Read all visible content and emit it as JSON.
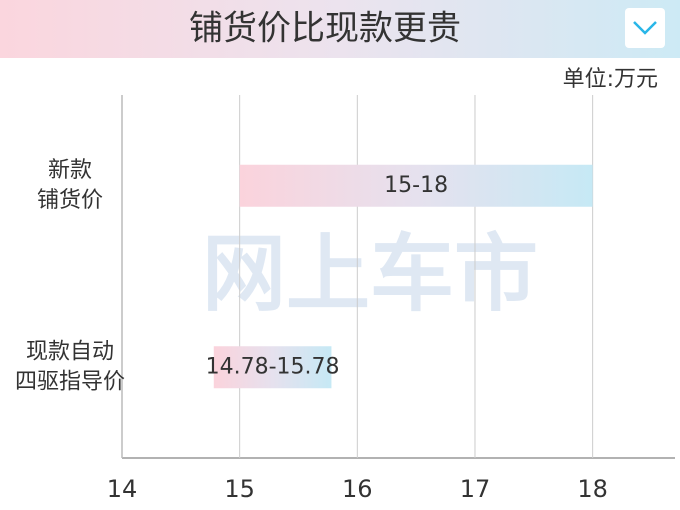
{
  "chart_data": {
    "type": "range-bar",
    "title": "铺货价比现款更贵",
    "unit_label": "单位:万元",
    "watermark": "网上车市",
    "categories": [
      [
        "新款",
        "铺货价"
      ],
      [
        "现款自动",
        "四驱指导价"
      ]
    ],
    "values": [
      [
        15,
        18
      ],
      [
        14.78,
        15.78
      ]
    ],
    "value_labels": [
      "15-18",
      "14.78-15.78"
    ],
    "xlim": [
      14,
      18.7
    ],
    "xticks": [
      14,
      15,
      16,
      17,
      18
    ],
    "grid": true
  }
}
